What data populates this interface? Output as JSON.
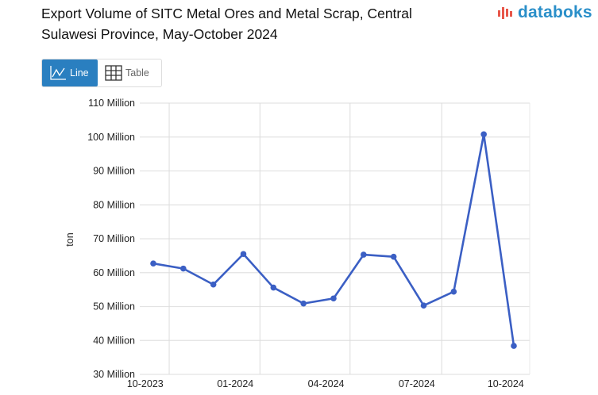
{
  "header": {
    "title": "Export Volume of SITC Metal Ores and Metal Scrap, Central Sulawesi Province, May-October 2024",
    "logo": "databoks"
  },
  "toggle": {
    "line_label": "Line",
    "table_label": "Table",
    "active": "Line"
  },
  "colors": {
    "line": "#3b5fc4",
    "accent": "#2a7fc0",
    "logo": "#2a8fc9"
  },
  "chart_data": {
    "type": "line",
    "title": "Export Volume of SITC Metal Ores and Metal Scrap, Central Sulawesi Province, May-October 2024",
    "ylabel": "ton",
    "xlabel": "",
    "ylim": [
      30,
      110
    ],
    "yticks": [
      "30 Million",
      "40 Million",
      "50 Million",
      "60 Million",
      "70 Million",
      "80 Million",
      "90 Million",
      "100 Million",
      "110 Million"
    ],
    "xticks": [
      "10-2023",
      "01-2024",
      "04-2024",
      "07-2024",
      "10-2024"
    ],
    "grid": true,
    "x": [
      "10-2023",
      "11-2023",
      "12-2023",
      "01-2024",
      "02-2024",
      "03-2024",
      "04-2024",
      "05-2024",
      "06-2024",
      "07-2024",
      "08-2024",
      "09-2024",
      "10-2024"
    ],
    "series": [
      {
        "values": [
          62.7,
          61.2,
          56.5,
          65.5,
          55.6,
          50.9,
          52.4,
          65.3,
          64.7,
          50.3,
          54.4,
          100.8,
          38.4
        ]
      }
    ]
  }
}
